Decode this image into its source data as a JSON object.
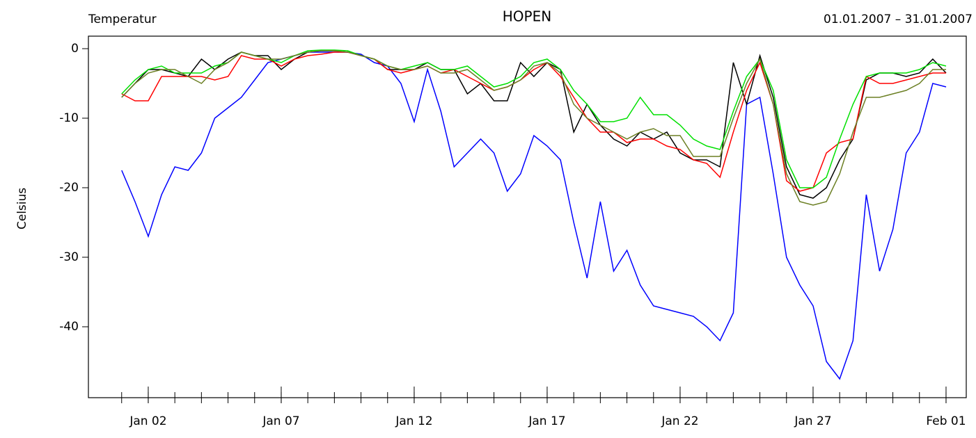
{
  "chart_data": {
    "type": "line",
    "title": "HOPEN",
    "subtitle_left": "Temperatur",
    "subtitle_right": "01.01.2007 – 31.01.2007",
    "y_label": "Celsius",
    "x": [
      1,
      1.5,
      2,
      2.5,
      3,
      3.5,
      4,
      4.5,
      5,
      5.5,
      6,
      6.5,
      7,
      7.5,
      8,
      8.5,
      9,
      9.5,
      10,
      10.5,
      11,
      11.5,
      12,
      12.5,
      13,
      13.5,
      14,
      14.5,
      15,
      15.5,
      16,
      16.5,
      17,
      17.5,
      18,
      18.5,
      19,
      19.5,
      20,
      20.5,
      21,
      21.5,
      22,
      22.5,
      23,
      23.5,
      24,
      24.5,
      25,
      25.5,
      26,
      26.5,
      27,
      27.5,
      28,
      28.5,
      29,
      29.5,
      30,
      30.5,
      31,
      31.5,
      32
    ],
    "series": [
      {
        "color": "#0000ff",
        "values": [
          -17.5,
          -22,
          -27,
          -21,
          -17,
          -17.5,
          -15,
          -10,
          -8.5,
          -7,
          -4.5,
          -2,
          -1.5,
          -1,
          -0.5,
          -0.5,
          -0.5,
          -0.5,
          -0.8,
          -2,
          -2.5,
          -5,
          -10.5,
          -3,
          -9,
          -17,
          -15,
          -13,
          -15,
          -20.5,
          -18,
          -12.5,
          -14,
          -16,
          -25,
          -33,
          -22,
          -32,
          -29,
          -34,
          -37,
          -37.5,
          -38,
          -38.5,
          -40,
          -42,
          -38,
          -8,
          -7,
          -18,
          -30,
          -34,
          -37,
          -45,
          -47.5,
          -42,
          -21,
          -32,
          -26,
          -15,
          -12,
          -5,
          -5.5
        ]
      },
      {
        "color": "#000000",
        "values": [
          -7,
          -5,
          -3,
          -3,
          -3.5,
          -4,
          -1.5,
          -3,
          -1.5,
          -0.5,
          -1,
          -1,
          -3,
          -1.5,
          -0.5,
          -0.3,
          -0.3,
          -0.5,
          -1,
          -1.5,
          -3,
          -3,
          -3,
          -2,
          -3,
          -3,
          -6.5,
          -5,
          -7.5,
          -7.5,
          -2,
          -4,
          -2,
          -3,
          -12,
          -8,
          -11,
          -13,
          -14,
          -12,
          -13,
          -12,
          -15,
          -16,
          -16,
          -17,
          -2,
          -8,
          -1,
          -7,
          -17,
          -21,
          -21.5,
          -20,
          -16,
          -13,
          -4.5,
          -3.5,
          -3.5,
          -4,
          -3.5,
          -1.5,
          -3.5
        ]
      },
      {
        "color": "#ff0000",
        "values": [
          -6.5,
          -7.5,
          -7.5,
          -4,
          -4,
          -4,
          -4,
          -4.5,
          -4,
          -1,
          -1.5,
          -1.5,
          -2.5,
          -1.5,
          -1,
          -0.8,
          -0.5,
          -0.5,
          -1,
          -1.5,
          -3,
          -3.5,
          -3,
          -2.5,
          -3.5,
          -3,
          -4,
          -5,
          -6,
          -5.5,
          -4.5,
          -3,
          -2,
          -4,
          -7,
          -10,
          -12,
          -12,
          -13.5,
          -13,
          -13,
          -14,
          -14.5,
          -16,
          -16.5,
          -18.5,
          -12,
          -6,
          -2,
          -8,
          -19,
          -20.5,
          -20,
          -15,
          -13.5,
          -13,
          -4,
          -5,
          -5,
          -4.5,
          -4,
          -3.5,
          -3.5
        ]
      },
      {
        "color": "#00e000",
        "values": [
          -6.5,
          -4.5,
          -3,
          -2.5,
          -3.5,
          -3.5,
          -3.5,
          -2.5,
          -2,
          -0.5,
          -1,
          -1.5,
          -2,
          -1,
          -0.3,
          -0.2,
          -0.2,
          -0.3,
          -1,
          -1.5,
          -2.5,
          -3,
          -2.5,
          -2,
          -3,
          -3,
          -2.5,
          -4,
          -5.5,
          -5,
          -4,
          -2,
          -1.5,
          -3,
          -6,
          -8,
          -10.5,
          -10.5,
          -10,
          -7,
          -9.5,
          -9.5,
          -11,
          -13,
          -14,
          -14.5,
          -9,
          -4,
          -1.5,
          -6,
          -16,
          -20,
          -20,
          -18.5,
          -13,
          -8,
          -4,
          -3.5,
          -3.5,
          -3.5,
          -3,
          -2,
          -2.5
        ]
      },
      {
        "color": "#6b7f23",
        "values": [
          -7,
          -5,
          -3.5,
          -3,
          -3,
          -4,
          -5,
          -3,
          -2,
          -0.5,
          -1,
          -1.5,
          -1.5,
          -1,
          -0.5,
          -0.3,
          -0.3,
          -0.5,
          -1,
          -1.5,
          -2.5,
          -3,
          -3,
          -2.5,
          -3.5,
          -3.5,
          -3,
          -4.5,
          -6,
          -5.5,
          -4.5,
          -2.5,
          -2,
          -3.5,
          -8,
          -10,
          -11,
          -12,
          -13,
          -12,
          -11.5,
          -12.5,
          -12.5,
          -15.5,
          -15.5,
          -15.5,
          -10,
          -5,
          -1.5,
          -8,
          -18,
          -22,
          -22.5,
          -22,
          -18,
          -12,
          -7,
          -7,
          -6.5,
          -6,
          -5,
          -3,
          -3
        ]
      }
    ],
    "xlim": [
      -0.25,
      32.76
    ],
    "xticks": [
      {
        "value": 2,
        "label": "Jan 02"
      },
      {
        "value": 7,
        "label": "Jan 07"
      },
      {
        "value": 12,
        "label": "Jan 12"
      },
      {
        "value": 17,
        "label": "Jan 17"
      },
      {
        "value": 22,
        "label": "Jan 22"
      },
      {
        "value": 27,
        "label": "Jan 27"
      },
      {
        "value": 32,
        "label": "Feb 01"
      }
    ],
    "x_minor_ticks": [
      1,
      2,
      3,
      4,
      5,
      6,
      7,
      8,
      9,
      10,
      11,
      12,
      13,
      14,
      15,
      16,
      17,
      18,
      19,
      20,
      21,
      22,
      23,
      24,
      25,
      26,
      27,
      28,
      29,
      30,
      31,
      32
    ],
    "ylim": [
      -50.2,
      1.8
    ],
    "yticks": [
      0,
      -10,
      -20,
      -30,
      -40
    ]
  }
}
